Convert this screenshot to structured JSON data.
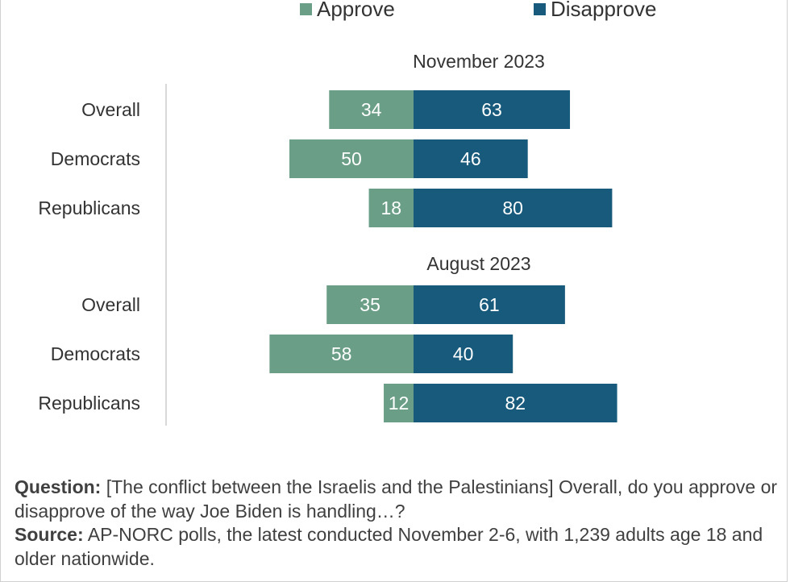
{
  "chart_data": {
    "type": "bar",
    "orientation": "horizontal-diverging",
    "legend": {
      "placement": "top",
      "items": [
        {
          "name": "Approve",
          "color": "#6a9e86"
        },
        {
          "name": "Disapprove",
          "color": "#175a7c"
        }
      ]
    },
    "panels": [
      {
        "title": "November 2023",
        "categories": [
          "Overall",
          "Democrats",
          "Republicans"
        ],
        "series": [
          {
            "name": "Approve",
            "values": [
              34,
              50,
              18
            ]
          },
          {
            "name": "Disapprove",
            "values": [
              63,
              46,
              80
            ]
          }
        ]
      },
      {
        "title": "August 2023",
        "categories": [
          "Overall",
          "Democrats",
          "Republicans"
        ],
        "series": [
          {
            "name": "Approve",
            "values": [
              35,
              58,
              12
            ]
          },
          {
            "name": "Disapprove",
            "values": [
              61,
              40,
              82
            ]
          }
        ]
      }
    ],
    "grid": false,
    "colors": {
      "approve": "#6a9e86",
      "disapprove": "#175a7c",
      "axis": "#cccccc",
      "text": "#333333"
    }
  },
  "footer": {
    "question_label": "Question:",
    "question_text": " [The conflict between the Israelis and the Palestinians] Overall, do you approve or disapprove of the way Joe Biden is handling…?",
    "source_label": "Source:",
    "source_text": " AP-NORC polls, the latest conducted November 2-6, with 1,239 adults age 18 and older nationwide."
  }
}
